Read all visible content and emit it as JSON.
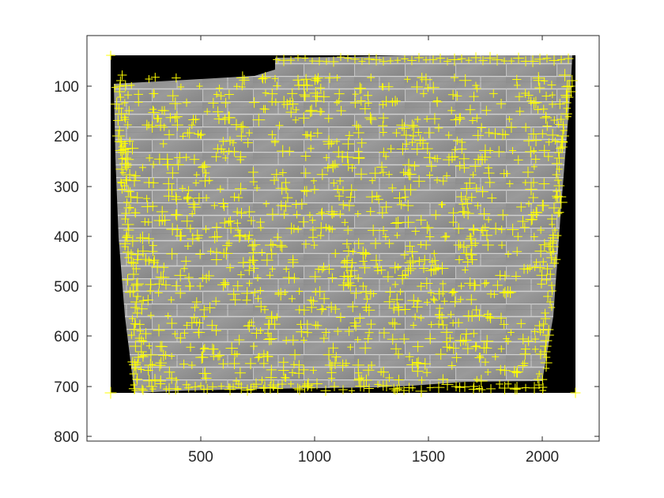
{
  "figure": {
    "x_ticks": [
      "500",
      "1000",
      "1500",
      "2000"
    ],
    "y_ticks": [
      "100",
      "200",
      "300",
      "400",
      "500",
      "600",
      "700",
      "800"
    ],
    "xlim": [
      0,
      2250
    ],
    "ylim": [
      820,
      0
    ],
    "y_reversed": true,
    "marker_color": "#ffff00",
    "marker_glyph": "+",
    "image_background": "#000000"
  }
}
